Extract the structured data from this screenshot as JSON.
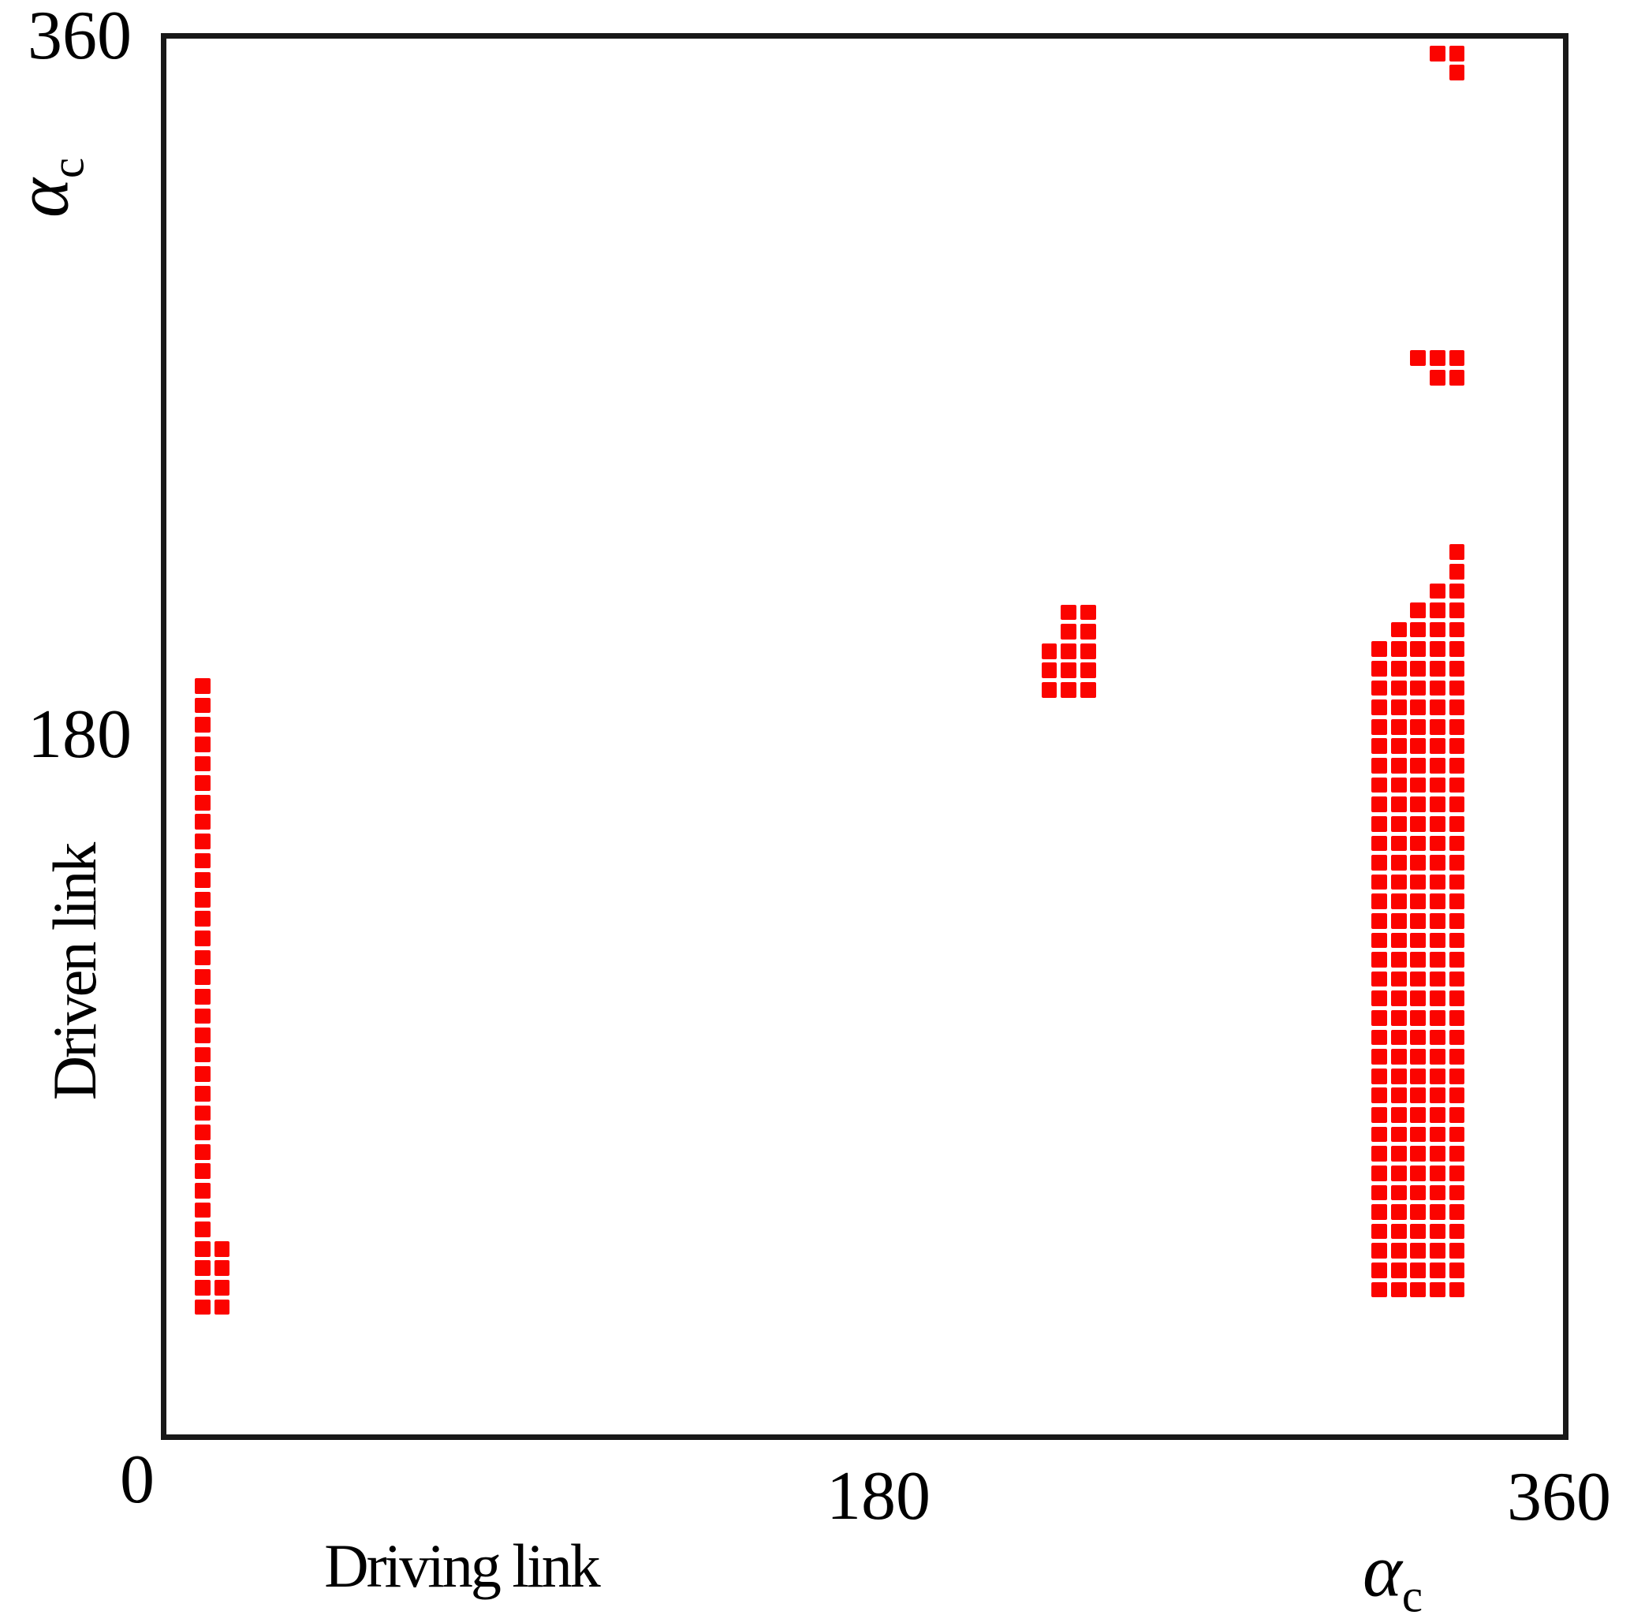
{
  "chart_data": {
    "type": "scatter",
    "marker": {
      "shape": "square",
      "color": "#fb0400",
      "size_deg": 4,
      "cell_deg": 5
    },
    "axis_color": "#181818",
    "background_color": "#ffffff",
    "xlabel": "Driving link",
    "ylabel": "Driven link",
    "x_axis_symbol": {
      "base": "α",
      "sub": "c"
    },
    "y_axis_symbol": {
      "base": "α",
      "sub": "c"
    },
    "x_tick_labels": [
      "0",
      "180",
      "360"
    ],
    "y_tick_labels": [
      "360",
      "180"
    ],
    "x_tick_values": [
      0,
      180,
      360
    ],
    "y_tick_values": [
      360,
      180
    ],
    "xlim": [
      0,
      360
    ],
    "ylim": [
      0,
      360
    ],
    "grid": false,
    "legend": null,
    "clusters": [
      {
        "id": "left-column-main",
        "columns": [
          {
            "x": 9.5,
            "y_from": 33,
            "y_to": 193
          }
        ]
      },
      {
        "id": "left-column-short",
        "columns": [
          {
            "x": 14.5,
            "y_from": 33,
            "y_to": 48
          }
        ]
      },
      {
        "id": "middle-cluster",
        "columns": [
          {
            "x": 227.5,
            "y_from": 192,
            "y_to": 202
          },
          {
            "x": 232.5,
            "y_from": 192,
            "y_to": 212
          },
          {
            "x": 237.5,
            "y_from": 192,
            "y_to": 212
          }
        ]
      },
      {
        "id": "right-band",
        "columns": [
          {
            "x": 312.5,
            "y_from": 37.5,
            "y_to": 202.5
          },
          {
            "x": 317.5,
            "y_from": 37.5,
            "y_to": 207.5
          },
          {
            "x": 322.5,
            "y_from": 37.5,
            "y_to": 212.5
          },
          {
            "x": 327.5,
            "y_from": 37.5,
            "y_to": 217.5
          },
          {
            "x": 332.5,
            "y_from": 37.5,
            "y_to": 227.5
          }
        ]
      },
      {
        "id": "upper-right-top-cluster",
        "columns": [
          {
            "x": 327.5,
            "y_from": 356,
            "y_to": 356
          },
          {
            "x": 332.5,
            "y_from": 351,
            "y_to": 356
          }
        ]
      },
      {
        "id": "upper-right-mid-cluster",
        "columns": [
          {
            "x": 322.5,
            "y_from": 277.5,
            "y_to": 277.5
          },
          {
            "x": 327.5,
            "y_from": 272.5,
            "y_to": 277.5
          },
          {
            "x": 332.5,
            "y_from": 272.5,
            "y_to": 277.5
          }
        ]
      }
    ]
  }
}
